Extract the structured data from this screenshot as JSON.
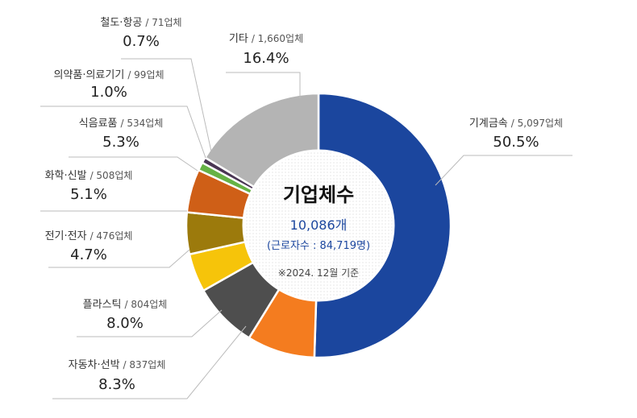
{
  "chart_data": {
    "type": "donut",
    "categories": [
      "기계금속",
      "자동차·선박",
      "플라스틱",
      "전기·전자",
      "화학·신발",
      "식음료품",
      "의약품·의료기기",
      "철도·항공",
      "기타"
    ],
    "sublabels": [
      "/ 5,097업체",
      "/ 837업체",
      "/ 804업체",
      "/ 476업체",
      "/ 508업체",
      "/ 534업체",
      "/ 99업체",
      "/ 71업체",
      "/ 1,660업체"
    ],
    "values": [
      50.5,
      8.3,
      8.0,
      4.7,
      5.1,
      5.3,
      1.0,
      0.7,
      16.4
    ],
    "value_labels": [
      "50.5%",
      "8.3%",
      "8.0%",
      "4.7%",
      "5.1%",
      "5.3%",
      "1.0%",
      "0.7%",
      "16.4%"
    ],
    "colors": [
      "#1b469e",
      "#f47c1f",
      "#4e4e4e",
      "#f6c40a",
      "#9c7a0c",
      "#cf5f17",
      "#66b245",
      "#4a3654",
      "#b4b4b4"
    ],
    "center": {
      "title": "기업체수",
      "total": "10,086개",
      "workers": "(근로자수 : 84,719명)",
      "note": "※2024. 12월 기준"
    }
  }
}
